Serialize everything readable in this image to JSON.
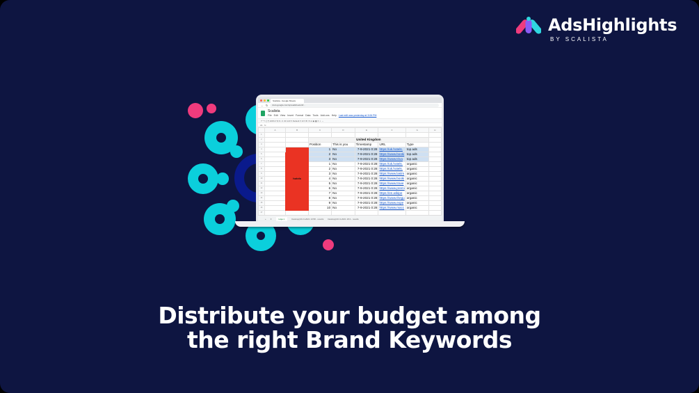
{
  "brand": {
    "name": "AdsHighlights",
    "byline": "BY SCALISTA"
  },
  "colors": {
    "background": "#0e1541",
    "cyan": "#0bcfdc",
    "pink": "#ef3b7d",
    "navy": "#0a1a8c",
    "highlight": "#cfe0f2",
    "red_cell": "#ea3323"
  },
  "headline": {
    "line1": "Distribute your budget among",
    "line2": "the right Brand Keywords"
  },
  "browser": {
    "tab": "Scalista - Google Sheets",
    "url": "docs.google.com/spreadsheets/d/..."
  },
  "sheet": {
    "title": "Scalista",
    "menus": [
      "File",
      "Edit",
      "View",
      "Insert",
      "Format",
      "Data",
      "Tools",
      "Add-ons",
      "Help"
    ],
    "last_edit": "Last edit was yesterday at 3:06 PM",
    "cell_ref": "A1",
    "columns": [
      "A",
      "B",
      "C",
      "D",
      "E",
      "F",
      "G",
      "H"
    ],
    "region": "United Kingdom",
    "headers": [
      "Position",
      "This is you",
      "Timestamp",
      "URL",
      "Type"
    ],
    "keyword": "hotels",
    "rows": [
      {
        "pos": "1",
        "you": "No",
        "ts": "7-9-2021 0:28",
        "url": "https://uk.hotels.",
        "type": "top ads",
        "hl": true
      },
      {
        "pos": "2",
        "you": "No",
        "ts": "7-9-2021 0:28",
        "url": "https://www.booki",
        "type": "top ads",
        "hl": true
      },
      {
        "pos": "3",
        "you": "No",
        "ts": "7-9-2021 0:28",
        "url": "https://www.triva",
        "type": "top ads",
        "hl": true
      },
      {
        "pos": "1",
        "you": "No",
        "ts": "7-9-2021 0:28",
        "url": "https://uk.hotels.",
        "type": "organic"
      },
      {
        "pos": "2",
        "you": "No",
        "ts": "7-9-2021 0:28",
        "url": "https://uk.hotels.",
        "type": "organic"
      },
      {
        "pos": "3",
        "you": "No",
        "ts": "7-9-2021 0:28",
        "url": "https://www.lastm",
        "type": "organic"
      },
      {
        "pos": "4",
        "you": "No",
        "ts": "7-9-2021 0:28",
        "url": "https://www.booki",
        "type": "organic"
      },
      {
        "pos": "5",
        "you": "No",
        "ts": "7-9-2021 0:28",
        "url": "https://www.trave",
        "type": "organic"
      },
      {
        "pos": "6",
        "you": "No",
        "ts": "7-9-2021 0:28",
        "url": "https://www.premi",
        "type": "organic"
      },
      {
        "pos": "7",
        "you": "No",
        "ts": "7-9-2021 0:28",
        "url": "https://en.wikipe",
        "type": "organic"
      },
      {
        "pos": "8",
        "you": "No",
        "ts": "7-9-2021 0:28",
        "url": "https://www.thegu",
        "type": "organic"
      },
      {
        "pos": "9",
        "you": "No",
        "ts": "7-9-2021 0:28",
        "url": "https://www.expe",
        "type": "organic"
      },
      {
        "pos": "10",
        "you": "No",
        "ts": "7-9-2021 0:28",
        "url": "https://www.macc",
        "type": "organic"
      }
    ],
    "tabs": [
      "Hoja 1",
      "Desktop|UK-9-2021 13:58 - results",
      "Desktop|UK-9-2021 18:2 - results"
    ]
  }
}
